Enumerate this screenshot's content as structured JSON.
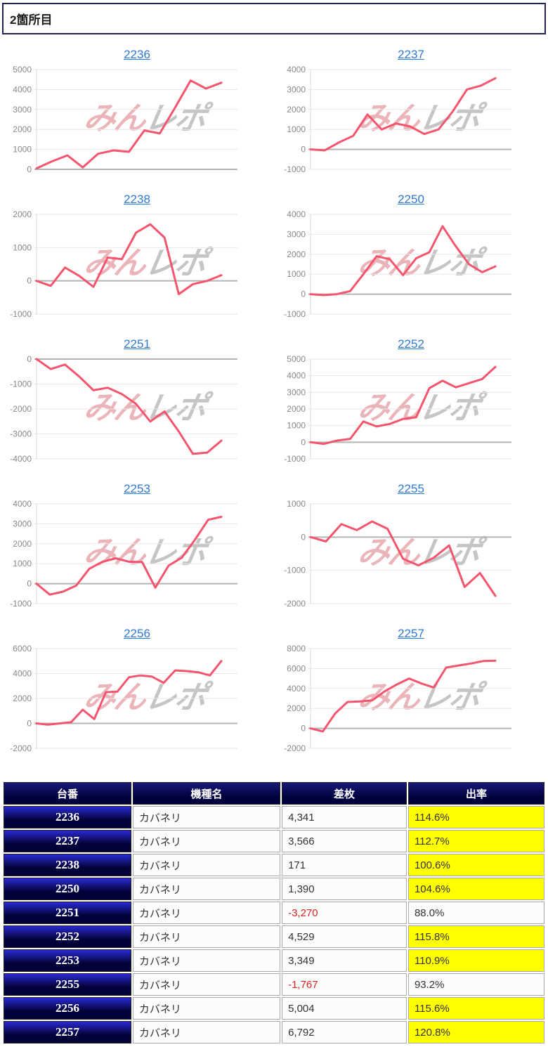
{
  "page": {
    "title": "2箇所目"
  },
  "watermark": {
    "pink_text": "みん",
    "gray_text": "レポ"
  },
  "colors": {
    "bar_border": "#21215a",
    "line": "#f4556e",
    "grid": "#e7e7e7",
    "zero": "#b5b5b5",
    "axis_label": "#888888",
    "link": "#2e7ad7",
    "hdr_top": "#1a1a78",
    "hdr_bot": "#00003c",
    "num_top": "#2a2ad4",
    "num_bot": "#020238",
    "cell_bg": "#fafdfa",
    "hl": "#ffff00",
    "neg": "#dd2222",
    "wm_pink": "#d96b76",
    "wm_gray": "#8c8c8c"
  },
  "chart_data": [
    {
      "type": "line",
      "title": "2236",
      "ymin": 0,
      "ymax": 5000,
      "ystep": 1000,
      "xlabel": "",
      "ylabel": "",
      "grid": true,
      "values": [
        50,
        400,
        700,
        100,
        780,
        950,
        880,
        1950,
        1800,
        3100,
        4450,
        4050,
        4341
      ]
    },
    {
      "type": "line",
      "title": "2237",
      "ymin": -1000,
      "ymax": 4000,
      "ystep": 1000,
      "xlabel": "",
      "ylabel": "",
      "grid": true,
      "values": [
        0,
        -50,
        350,
        680,
        1750,
        1000,
        1300,
        1150,
        770,
        1000,
        1900,
        3000,
        3200,
        3566
      ]
    },
    {
      "type": "line",
      "title": "2238",
      "ymin": -1000,
      "ymax": 2000,
      "ystep": 1000,
      "xlabel": "",
      "ylabel": "",
      "grid": true,
      "values": [
        0,
        -150,
        400,
        150,
        -180,
        700,
        650,
        1450,
        1700,
        1300,
        -400,
        -100,
        0,
        171
      ]
    },
    {
      "type": "line",
      "title": "2250",
      "ymin": -1000,
      "ymax": 4000,
      "ystep": 1000,
      "xlabel": "",
      "ylabel": "",
      "grid": true,
      "values": [
        0,
        -50,
        0,
        150,
        1000,
        1900,
        1750,
        950,
        1800,
        2100,
        3400,
        2400,
        1500,
        1100,
        1390
      ]
    },
    {
      "type": "line",
      "title": "2251",
      "ymin": -4000,
      "ymax": 0,
      "ystep": 1000,
      "xlabel": "",
      "ylabel": "",
      "grid": true,
      "values": [
        0,
        -400,
        -220,
        -700,
        -1250,
        -1150,
        -1400,
        -1800,
        -2500,
        -2100,
        -2900,
        -3800,
        -3750,
        -3270
      ]
    },
    {
      "type": "line",
      "title": "2252",
      "ymin": -1000,
      "ymax": 5000,
      "ystep": 1000,
      "xlabel": "",
      "ylabel": "",
      "grid": true,
      "values": [
        0,
        -100,
        100,
        200,
        1250,
        950,
        1100,
        1400,
        1500,
        3250,
        3700,
        3300,
        3550,
        3800,
        4529
      ]
    },
    {
      "type": "line",
      "title": "2253",
      "ymin": -1000,
      "ymax": 4000,
      "ystep": 1000,
      "xlabel": "",
      "ylabel": "",
      "grid": true,
      "values": [
        0,
        -550,
        -400,
        -100,
        750,
        1100,
        1270,
        1100,
        1080,
        -200,
        900,
        1300,
        2200,
        3200,
        3349
      ]
    },
    {
      "type": "line",
      "title": "2255",
      "ymin": -2000,
      "ymax": 1000,
      "ystep": 1000,
      "xlabel": "",
      "ylabel": "",
      "grid": true,
      "values": [
        0,
        -130,
        390,
        210,
        470,
        250,
        -650,
        -850,
        -620,
        -250,
        -1500,
        -1080,
        -1767
      ]
    },
    {
      "type": "line",
      "title": "2256",
      "ymin": -2000,
      "ymax": 6000,
      "ystep": 2000,
      "xlabel": "",
      "ylabel": "",
      "grid": true,
      "values": [
        0,
        -100,
        0,
        100,
        1100,
        350,
        2500,
        2550,
        3700,
        3850,
        3750,
        3250,
        4250,
        4200,
        4100,
        3850,
        5004
      ]
    },
    {
      "type": "line",
      "title": "2257",
      "ymin": -2000,
      "ymax": 8000,
      "ystep": 2000,
      "xlabel": "",
      "ylabel": "",
      "grid": true,
      "values": [
        0,
        -300,
        1500,
        2650,
        2700,
        2800,
        3700,
        4400,
        5000,
        4500,
        4100,
        6100,
        6300,
        6500,
        6750,
        6792
      ]
    }
  ],
  "table": {
    "headers": [
      "台番",
      "機種名",
      "差枚",
      "出率"
    ],
    "rows": [
      {
        "no": "2236",
        "model": "カバネリ",
        "diff": "4,341",
        "negative": false,
        "rate": "114.6%",
        "highlight": true
      },
      {
        "no": "2237",
        "model": "カバネリ",
        "diff": "3,566",
        "negative": false,
        "rate": "112.7%",
        "highlight": true
      },
      {
        "no": "2238",
        "model": "カバネリ",
        "diff": "171",
        "negative": false,
        "rate": "100.6%",
        "highlight": true
      },
      {
        "no": "2250",
        "model": "カバネリ",
        "diff": "1,390",
        "negative": false,
        "rate": "104.6%",
        "highlight": true
      },
      {
        "no": "2251",
        "model": "カバネリ",
        "diff": "-3,270",
        "negative": true,
        "rate": "88.0%",
        "highlight": false
      },
      {
        "no": "2252",
        "model": "カバネリ",
        "diff": "4,529",
        "negative": false,
        "rate": "115.8%",
        "highlight": true
      },
      {
        "no": "2253",
        "model": "カバネリ",
        "diff": "3,349",
        "negative": false,
        "rate": "110.9%",
        "highlight": true
      },
      {
        "no": "2255",
        "model": "カバネリ",
        "diff": "-1,767",
        "negative": true,
        "rate": "93.2%",
        "highlight": false
      },
      {
        "no": "2256",
        "model": "カバネリ",
        "diff": "5,004",
        "negative": false,
        "rate": "115.6%",
        "highlight": true
      },
      {
        "no": "2257",
        "model": "カバネリ",
        "diff": "6,792",
        "negative": false,
        "rate": "120.8%",
        "highlight": true
      }
    ]
  }
}
